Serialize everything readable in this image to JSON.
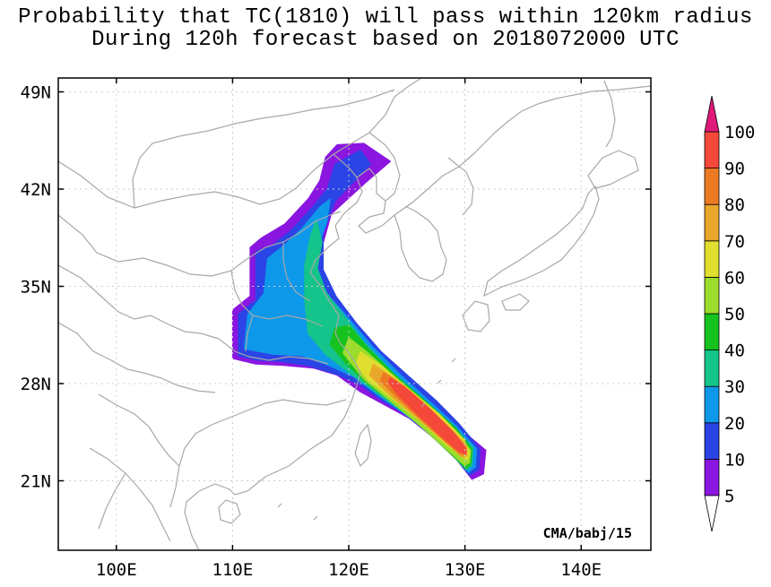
{
  "title": {
    "line1": "Probability that TC(1810) will pass within 120km radius",
    "line2": "During 120h forecast based on 2018072000 UTC"
  },
  "map": {
    "lon_range": [
      95,
      146
    ],
    "lat_range": [
      16,
      50
    ],
    "x_ticks": [
      {
        "lon": 100,
        "label": "100E"
      },
      {
        "lon": 110,
        "label": "110E"
      },
      {
        "lon": 120,
        "label": "120E"
      },
      {
        "lon": 130,
        "label": "130E"
      },
      {
        "lon": 140,
        "label": "140E"
      }
    ],
    "y_ticks": [
      {
        "lat": 21,
        "label": "21N"
      },
      {
        "lat": 28,
        "label": "28N"
      },
      {
        "lat": 35,
        "label": "35N"
      },
      {
        "lat": 42,
        "label": "42N"
      },
      {
        "lat": 49,
        "label": "49N"
      }
    ],
    "credit": "CMA/babj/15",
    "probability_regions": [
      {
        "level": 5,
        "color": "#8a16e0",
        "points": [
          [
            110,
            29.8
          ],
          [
            110,
            33.3
          ],
          [
            111.5,
            34.3
          ],
          [
            111.5,
            37.8
          ],
          [
            112.5,
            38.5
          ],
          [
            114.5,
            39.5
          ],
          [
            116.5,
            41.3
          ],
          [
            117.5,
            42.6
          ],
          [
            118,
            44.3
          ],
          [
            119,
            45.2
          ],
          [
            121.3,
            45.3
          ],
          [
            123.6,
            44
          ],
          [
            121.5,
            42.5
          ],
          [
            118.5,
            40.2
          ],
          [
            117.6,
            37.5
          ],
          [
            117.8,
            35.3
          ],
          [
            119.8,
            33.3
          ],
          [
            121.5,
            31.4
          ],
          [
            124,
            29.1
          ],
          [
            126,
            27.8
          ],
          [
            128,
            26.2
          ],
          [
            129.8,
            24.6
          ],
          [
            131.8,
            23.2
          ],
          [
            131.6,
            21.5
          ],
          [
            130.6,
            21.1
          ],
          [
            129.3,
            22.5
          ],
          [
            127.3,
            24.1
          ],
          [
            125.2,
            25.5
          ],
          [
            123,
            26.5
          ],
          [
            121,
            27.4
          ],
          [
            119,
            28.6
          ],
          [
            117,
            29.1
          ],
          [
            114.5,
            29.3
          ],
          [
            112,
            29.4
          ]
        ]
      },
      {
        "level": 10,
        "color": "#2b44e6",
        "points": [
          [
            110.5,
            30
          ],
          [
            110.5,
            33
          ],
          [
            112,
            34
          ],
          [
            112,
            37.5
          ],
          [
            113.5,
            38
          ],
          [
            115,
            39
          ],
          [
            117,
            40.8
          ],
          [
            118.2,
            42.1
          ],
          [
            118.8,
            43.8
          ],
          [
            121,
            44.8
          ],
          [
            121.9,
            43.8
          ],
          [
            118.8,
            41.1
          ],
          [
            117.8,
            38.8
          ],
          [
            117.8,
            36.2
          ],
          [
            118.9,
            34.3
          ],
          [
            120.6,
            32.4
          ],
          [
            122.8,
            30.3
          ],
          [
            125.2,
            28.5
          ],
          [
            127.5,
            26.8
          ],
          [
            129.5,
            25.1
          ],
          [
            131.3,
            23.3
          ],
          [
            131.2,
            21.8
          ],
          [
            130.4,
            21.4
          ],
          [
            129,
            22.8
          ],
          [
            127,
            24.3
          ],
          [
            125,
            25.7
          ],
          [
            122.8,
            26.8
          ],
          [
            121,
            27.9
          ],
          [
            118.8,
            28.7
          ],
          [
            116.5,
            29.3
          ],
          [
            114,
            29.6
          ],
          [
            112,
            29.7
          ]
        ]
      },
      {
        "level": 20,
        "color": "#0e98ea",
        "points": [
          [
            111,
            30.5
          ],
          [
            111.3,
            33
          ],
          [
            112.7,
            34.5
          ],
          [
            113,
            37
          ],
          [
            114.5,
            38
          ],
          [
            116,
            39.2
          ],
          [
            117.5,
            40.7
          ],
          [
            118.4,
            41.3
          ],
          [
            118.1,
            39.6
          ],
          [
            117.2,
            37.5
          ],
          [
            117.3,
            35.5
          ],
          [
            118.4,
            34.2
          ],
          [
            120,
            32.7
          ],
          [
            122,
            30.7
          ],
          [
            124.5,
            28.6
          ],
          [
            127,
            26.7
          ],
          [
            129.2,
            25
          ],
          [
            131,
            23.3
          ],
          [
            130.9,
            22
          ],
          [
            130.3,
            21.6
          ],
          [
            128.8,
            23
          ],
          [
            126.7,
            24.6
          ],
          [
            124.5,
            26
          ],
          [
            122.3,
            27.3
          ],
          [
            120.4,
            28.5
          ],
          [
            118.3,
            29.3
          ],
          [
            116,
            30
          ],
          [
            113.5,
            30.1
          ]
        ]
      },
      {
        "level": 30,
        "color": "#14c48a",
        "points": [
          [
            116.5,
            31.6
          ],
          [
            116.2,
            34
          ],
          [
            116.2,
            36.5
          ],
          [
            116.7,
            38.6
          ],
          [
            117.2,
            39.8
          ],
          [
            117.7,
            38.2
          ],
          [
            117.3,
            36.3
          ],
          [
            118.1,
            34.5
          ],
          [
            119.4,
            33.1
          ],
          [
            121.3,
            31
          ],
          [
            123.8,
            28.8
          ],
          [
            126.5,
            26.8
          ],
          [
            128.8,
            25
          ],
          [
            130.7,
            23.4
          ],
          [
            130.6,
            22.1
          ],
          [
            130.1,
            21.8
          ],
          [
            128.5,
            23.2
          ],
          [
            126.3,
            24.9
          ],
          [
            124.1,
            26.3
          ],
          [
            122,
            27.6
          ],
          [
            120,
            28.8
          ],
          [
            118,
            30.1
          ]
        ]
      },
      {
        "level": 40,
        "color": "#16c21e",
        "points": [
          [
            118.4,
            30.8
          ],
          [
            118.8,
            32
          ],
          [
            120,
            32.2
          ],
          [
            121.6,
            30.6
          ],
          [
            124,
            28.6
          ],
          [
            126.8,
            26.6
          ],
          [
            129.2,
            24.8
          ],
          [
            130.6,
            23.3
          ],
          [
            130.5,
            22.2
          ],
          [
            130.1,
            21.9
          ],
          [
            128.3,
            23.3
          ],
          [
            126,
            25.1
          ],
          [
            123.8,
            26.6
          ],
          [
            121.6,
            28
          ],
          [
            119.8,
            29.4
          ]
        ]
      },
      {
        "level": 50,
        "color": "#9cdc2c",
        "points": [
          [
            119.5,
            30.2
          ],
          [
            120,
            31.3
          ],
          [
            121.4,
            30.4
          ],
          [
            123.8,
            28.6
          ],
          [
            126.6,
            26.6
          ],
          [
            129.1,
            24.7
          ],
          [
            130.5,
            23.2
          ],
          [
            130.4,
            22.3
          ],
          [
            130,
            22.1
          ],
          [
            128.1,
            23.5
          ],
          [
            125.8,
            25.2
          ],
          [
            123.5,
            26.8
          ],
          [
            121.3,
            28.3
          ]
        ]
      },
      {
        "level": 60,
        "color": "#e0de2e",
        "points": [
          [
            120.6,
            29.4
          ],
          [
            121,
            30.3
          ],
          [
            122.8,
            29.3
          ],
          [
            125.2,
            27.6
          ],
          [
            127.8,
            25.8
          ],
          [
            129.9,
            24
          ],
          [
            130.4,
            23
          ],
          [
            130.2,
            22.5
          ],
          [
            128.4,
            23.6
          ],
          [
            126,
            25.4
          ],
          [
            123.6,
            27
          ],
          [
            121.6,
            28.3
          ]
        ]
      },
      {
        "level": 70,
        "color": "#e8a72a",
        "points": [
          [
            121.8,
            28.6
          ],
          [
            122.1,
            29.4
          ],
          [
            124,
            28.3
          ],
          [
            126.3,
            26.7
          ],
          [
            128.5,
            25
          ],
          [
            130.1,
            23.6
          ],
          [
            130.2,
            22.8
          ],
          [
            129.8,
            22.7
          ],
          [
            128,
            24
          ],
          [
            125.8,
            25.6
          ],
          [
            123.6,
            27.1
          ]
        ]
      },
      {
        "level": 80,
        "color": "#ec7a22",
        "points": [
          [
            122.7,
            28.2
          ],
          [
            123,
            28.8
          ],
          [
            124.8,
            27.8
          ],
          [
            127,
            26.2
          ],
          [
            129,
            24.5
          ],
          [
            130.1,
            23.4
          ],
          [
            130.1,
            22.9
          ],
          [
            129.6,
            22.9
          ],
          [
            127.8,
            24.2
          ],
          [
            125.7,
            25.8
          ],
          [
            123.9,
            27.2
          ]
        ]
      },
      {
        "level": 90,
        "color": "#f4483a",
        "points": [
          [
            123.4,
            28.1
          ],
          [
            123.6,
            28.4
          ],
          [
            125.2,
            27.5
          ],
          [
            127.3,
            25.9
          ],
          [
            129.1,
            24.4
          ],
          [
            130.1,
            23.3
          ],
          [
            130.1,
            22.9
          ],
          [
            129.5,
            23.1
          ],
          [
            127.7,
            24.4
          ],
          [
            125.5,
            26.1
          ],
          [
            124.2,
            27.2
          ]
        ]
      }
    ]
  },
  "colorbar": {
    "levels": [
      5,
      10,
      20,
      30,
      40,
      50,
      60,
      70,
      80,
      90,
      100
    ],
    "bands": [
      {
        "from": 5,
        "to": 10,
        "color": "#8a16e0"
      },
      {
        "from": 10,
        "to": 20,
        "color": "#2b44e6"
      },
      {
        "from": 20,
        "to": 30,
        "color": "#0e98ea"
      },
      {
        "from": 30,
        "to": 40,
        "color": "#14c48a"
      },
      {
        "from": 40,
        "to": 50,
        "color": "#16c21e"
      },
      {
        "from": 50,
        "to": 60,
        "color": "#9cdc2c"
      },
      {
        "from": 60,
        "to": 70,
        "color": "#e0de2e"
      },
      {
        "from": 70,
        "to": 80,
        "color": "#e8a72a"
      },
      {
        "from": 80,
        "to": 90,
        "color": "#ec7a22"
      },
      {
        "from": 90,
        "to": 100,
        "color": "#f4483a"
      }
    ],
    "over_color": "#e0187a",
    "under_color": "#ffffff"
  },
  "colors": {
    "coastline": "#a8a8a8",
    "grid": "#cccccc",
    "frame": "#000000"
  }
}
